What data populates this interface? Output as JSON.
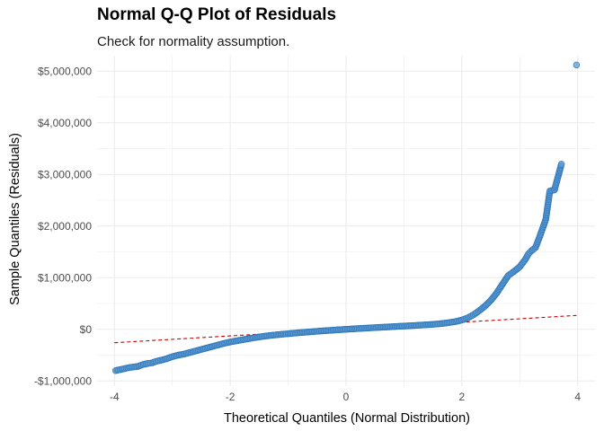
{
  "chart_data": {
    "type": "scatter",
    "title": "Normal Q-Q Plot of Residuals",
    "subtitle": "Check for normality assumption.",
    "xlabel": "Theoretical Quantiles (Normal Distribution)",
    "ylabel": "Sample Quantiles (Residuals)",
    "xlim": [
      -4.3,
      4.3
    ],
    "ylim": [
      -1100000,
      5300000
    ],
    "x_ticks": [
      -4,
      -2,
      0,
      2,
      4
    ],
    "x_tick_labels": [
      "-4",
      "-2",
      "0",
      "2",
      "4"
    ],
    "y_ticks": [
      -1000000,
      0,
      1000000,
      2000000,
      3000000,
      4000000,
      5000000
    ],
    "y_tick_labels": [
      "-$1,000,000",
      "$0",
      "$1,000,000",
      "$2,000,000",
      "$3,000,000",
      "$4,000,000",
      "$5,000,000"
    ],
    "grid": true,
    "legend": "none",
    "series": [
      {
        "points": [
          [
            -3.98,
            -800000
          ],
          [
            -3.74,
            -740000
          ],
          [
            -3.6,
            -720000
          ],
          [
            -3.5,
            -680000
          ],
          [
            -3.42,
            -660000
          ],
          [
            -3.35,
            -650000
          ],
          [
            -3.28,
            -620000
          ],
          [
            -3.2,
            -600000
          ],
          [
            -3.1,
            -570000
          ],
          [
            -3.0,
            -530000
          ],
          [
            -2.9,
            -500000
          ],
          [
            -2.8,
            -480000
          ],
          [
            -2.7,
            -450000
          ],
          [
            -2.6,
            -420000
          ],
          [
            -2.5,
            -390000
          ],
          [
            -2.4,
            -360000
          ],
          [
            -2.3,
            -330000
          ],
          [
            -2.2,
            -300000
          ],
          [
            -2.1,
            -270000
          ],
          [
            -2.0,
            -245000
          ],
          [
            -1.9,
            -225000
          ],
          [
            -1.8,
            -205000
          ],
          [
            -1.7,
            -185000
          ],
          [
            -1.6,
            -165000
          ],
          [
            -1.5,
            -148000
          ],
          [
            -1.4,
            -132000
          ],
          [
            -1.3,
            -118000
          ],
          [
            -1.2,
            -106000
          ],
          [
            -1.1,
            -95000
          ],
          [
            -1.0,
            -85000
          ],
          [
            -0.9,
            -75000
          ],
          [
            -0.8,
            -65000
          ],
          [
            -0.7,
            -56000
          ],
          [
            -0.6,
            -47000
          ],
          [
            -0.5,
            -38000
          ],
          [
            -0.4,
            -30000
          ],
          [
            -0.3,
            -22000
          ],
          [
            -0.2,
            -14000
          ],
          [
            -0.1,
            -7000
          ],
          [
            0.0,
            0
          ],
          [
            0.1,
            7000
          ],
          [
            0.2,
            14000
          ],
          [
            0.3,
            20000
          ],
          [
            0.4,
            27000
          ],
          [
            0.5,
            33000
          ],
          [
            0.6,
            39000
          ],
          [
            0.7,
            45000
          ],
          [
            0.8,
            51000
          ],
          [
            0.9,
            57000
          ],
          [
            1.0,
            63000
          ],
          [
            1.1,
            69000
          ],
          [
            1.2,
            75000
          ],
          [
            1.3,
            82000
          ],
          [
            1.4,
            89000
          ],
          [
            1.5,
            97000
          ],
          [
            1.6,
            106000
          ],
          [
            1.7,
            118000
          ],
          [
            1.8,
            133000
          ],
          [
            1.9,
            152000
          ],
          [
            2.0,
            180000
          ],
          [
            2.1,
            220000
          ],
          [
            2.2,
            280000
          ],
          [
            2.3,
            360000
          ],
          [
            2.4,
            450000
          ],
          [
            2.5,
            560000
          ],
          [
            2.6,
            700000
          ],
          [
            2.7,
            870000
          ],
          [
            2.8,
            1040000
          ],
          [
            2.9,
            1120000
          ],
          [
            3.0,
            1210000
          ],
          [
            3.1,
            1360000
          ],
          [
            3.15,
            1460000
          ],
          [
            3.2,
            1520000
          ],
          [
            3.27,
            1580000
          ],
          [
            3.34,
            1780000
          ],
          [
            3.4,
            1970000
          ],
          [
            3.45,
            2130000
          ],
          [
            3.52,
            2680000
          ],
          [
            3.6,
            2700000
          ],
          [
            3.72,
            3200000
          ],
          [
            3.98,
            5120000
          ]
        ]
      }
    ],
    "reference_line": {
      "x": [
        -4,
        4
      ],
      "y": [
        -260000,
        270000
      ]
    },
    "colors": {
      "point_fill": "#5b9bd5",
      "point_stroke": "#2e75b6",
      "reference_line": "#cc0000",
      "grid": "#ebebeb"
    }
  }
}
